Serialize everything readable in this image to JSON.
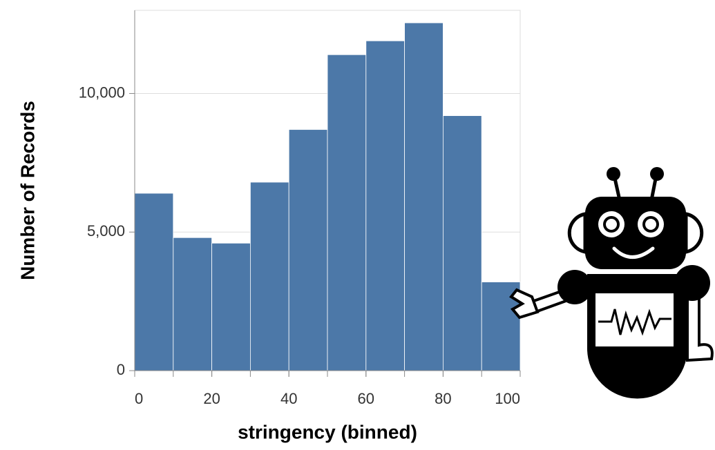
{
  "chart_data": {
    "type": "histogram",
    "bins": [
      0,
      10,
      20,
      30,
      40,
      50,
      60,
      70,
      80,
      90,
      100
    ],
    "values": [
      6400,
      4800,
      4600,
      6800,
      8700,
      11400,
      11900,
      12550,
      9200,
      3200
    ],
    "color": "#4c78a8",
    "xlabel": "stringency (binned)",
    "ylabel": "Number of Records",
    "xlim": [
      0,
      100
    ],
    "xticks": [
      0,
      20,
      40,
      60,
      80,
      100
    ],
    "ylim": [
      0,
      13000
    ],
    "yticks": [
      0,
      {
        "value": 5000,
        "label": "5,000"
      },
      {
        "value": 10000,
        "label": "10,000"
      }
    ],
    "grid": true
  }
}
